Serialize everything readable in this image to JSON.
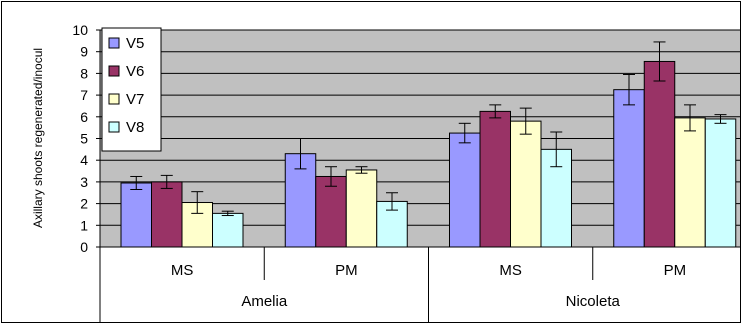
{
  "chart_data": {
    "type": "bar",
    "title": "",
    "xlabel": "",
    "ylabel": "Axillary shoots regenerated/inocul",
    "ylim": [
      0,
      10
    ],
    "yticks": [
      0,
      1,
      2,
      3,
      4,
      5,
      6,
      7,
      8,
      9,
      10
    ],
    "grid": true,
    "plot_background": "#c0c0c0",
    "legend_position": "top-left",
    "groups": [
      {
        "label": "Amelia",
        "categories": [
          "MS",
          "PM"
        ]
      },
      {
        "label": "Nicoleta",
        "categories": [
          "MS",
          "PM"
        ]
      }
    ],
    "categories": [
      "MS",
      "PM",
      "MS",
      "PM"
    ],
    "series": [
      {
        "name": "V5",
        "color": "#9999ff",
        "values": [
          2.95,
          4.3,
          5.25,
          7.25
        ],
        "errors": [
          0.3,
          0.7,
          0.45,
          0.7
        ]
      },
      {
        "name": "V6",
        "color": "#993366",
        "values": [
          3.0,
          3.25,
          6.25,
          8.55
        ],
        "errors": [
          0.3,
          0.45,
          0.3,
          0.9
        ]
      },
      {
        "name": "V7",
        "color": "#ffffcc",
        "values": [
          2.05,
          3.55,
          5.8,
          5.95
        ],
        "errors": [
          0.5,
          0.15,
          0.6,
          0.6
        ]
      },
      {
        "name": "V8",
        "color": "#ccffff",
        "values": [
          1.55,
          2.1,
          4.5,
          5.9
        ],
        "errors": [
          0.1,
          0.4,
          0.8,
          0.2
        ]
      }
    ]
  }
}
